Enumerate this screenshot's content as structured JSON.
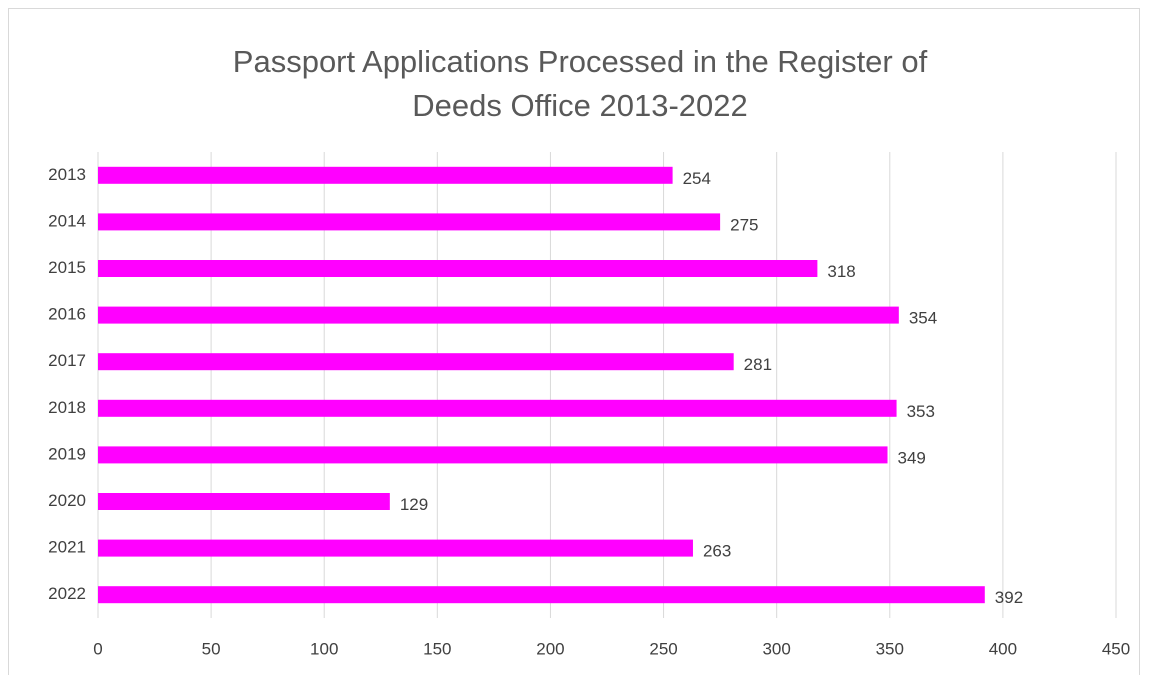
{
  "chart_data": {
    "type": "bar",
    "orientation": "horizontal",
    "title": "Passport Applications Processed in the Register of Deeds Office 2013-2022",
    "categories": [
      "2013",
      "2014",
      "2015",
      "2016",
      "2017",
      "2018",
      "2019",
      "2020",
      "2021",
      "2022"
    ],
    "values": [
      254,
      275,
      318,
      354,
      281,
      353,
      349,
      129,
      263,
      392
    ],
    "color": "#ff00ff",
    "xlim": [
      0,
      450
    ],
    "xticks": [
      0,
      50,
      100,
      150,
      200,
      250,
      300,
      350,
      400,
      450
    ],
    "grid": true
  }
}
